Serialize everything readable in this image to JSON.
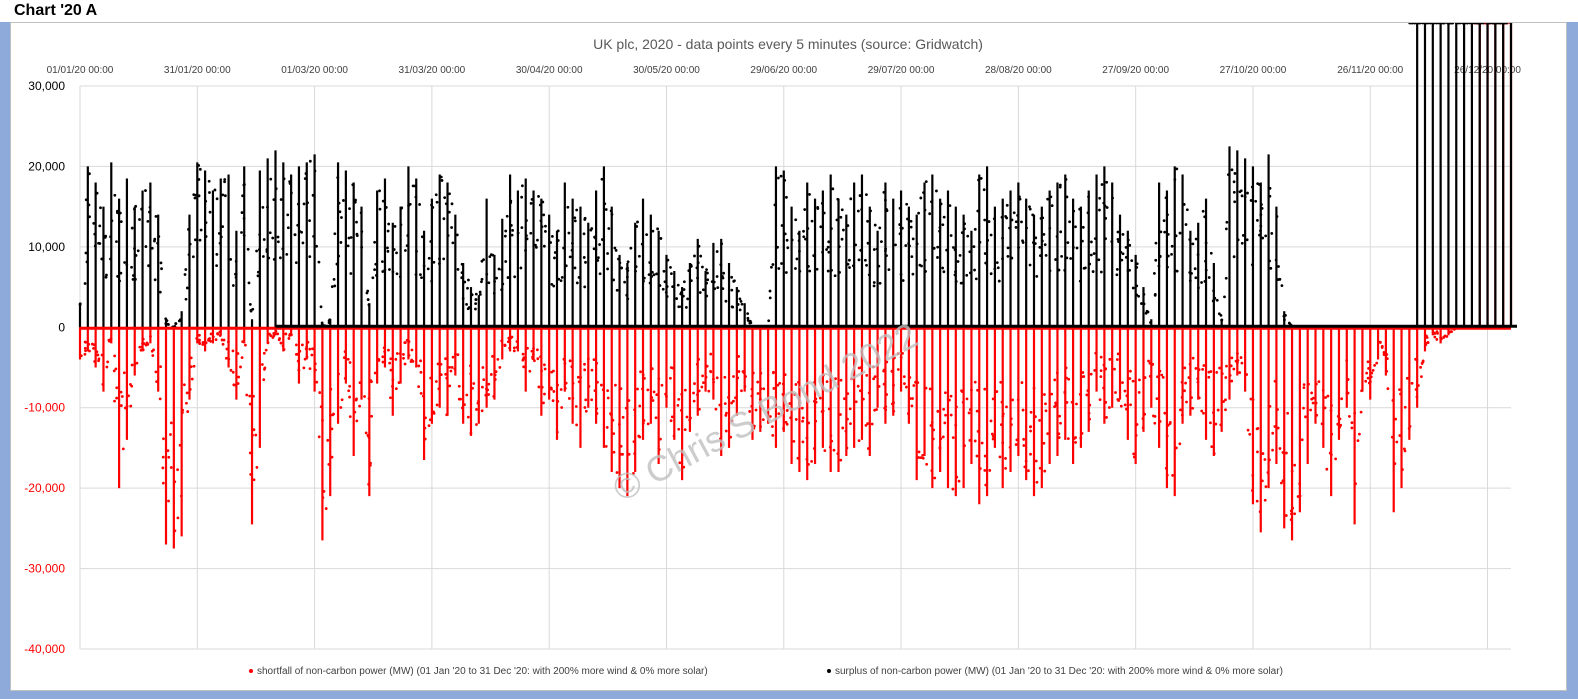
{
  "sheet": {
    "title": "Chart '20 A"
  },
  "watermark": "© Chris S Bond 2022",
  "chart_data": {
    "type": "scatter",
    "title": "UK plc, 2020 - data points every 5 minutes (source: Gridwatch)",
    "xlabel": "",
    "ylabel": "",
    "x_tick_labels": [
      "01/01/20 00:00",
      "31/01/20 00:00",
      "01/03/20 00:00",
      "31/03/20 00:00",
      "30/04/20 00:00",
      "30/05/20 00:00",
      "29/06/20 00:00",
      "29/07/20 00:00",
      "28/08/20 00:00",
      "27/09/20 00:00",
      "27/10/20 00:00",
      "26/11/20 00:00",
      "26/12/20 00:00"
    ],
    "x_tick_days": [
      0,
      30,
      60,
      90,
      120,
      150,
      180,
      210,
      240,
      270,
      300,
      330,
      360
    ],
    "xlim_days": [
      0,
      366
    ],
    "ylim": [
      -40000,
      30000
    ],
    "y_ticks": [
      30000,
      20000,
      10000,
      0,
      -10000,
      -20000,
      -30000,
      -40000
    ],
    "y_tick_labels": [
      "30,000",
      "20,000",
      "10,000",
      "0",
      "-10,000",
      "-20,000",
      "-30,000",
      "-40,000"
    ],
    "grid": true,
    "legend_position": "bottom",
    "series": [
      {
        "name": "shortfall of non-carbon power (MW) (01 Jan '20 to 31 Dec '20: with 200% more wind & 0% more solar)",
        "color": "#ff0000",
        "x_days": [
          0,
          2,
          4,
          6,
          8,
          10,
          12,
          14,
          16,
          18,
          20,
          22,
          24,
          26,
          28,
          30,
          32,
          34,
          36,
          38,
          40,
          42,
          44,
          46,
          48,
          50,
          52,
          54,
          56,
          58,
          60,
          62,
          64,
          66,
          68,
          70,
          72,
          74,
          76,
          78,
          80,
          82,
          84,
          86,
          88,
          90,
          92,
          94,
          96,
          98,
          100,
          102,
          104,
          106,
          108,
          110,
          112,
          114,
          116,
          118,
          120,
          122,
          124,
          126,
          128,
          130,
          132,
          134,
          136,
          138,
          140,
          142,
          144,
          146,
          148,
          150,
          152,
          154,
          156,
          158,
          160,
          162,
          164,
          166,
          168,
          170,
          172,
          174,
          176,
          178,
          180,
          182,
          184,
          186,
          188,
          190,
          192,
          194,
          196,
          198,
          200,
          202,
          204,
          206,
          208,
          210,
          212,
          214,
          216,
          218,
          220,
          222,
          224,
          226,
          228,
          230,
          232,
          234,
          236,
          238,
          240,
          242,
          244,
          246,
          248,
          250,
          252,
          254,
          256,
          258,
          260,
          262,
          264,
          266,
          268,
          270,
          272,
          274,
          276,
          278,
          280,
          282,
          284,
          286,
          288,
          290,
          292,
          294,
          296,
          298,
          300,
          302,
          304,
          306,
          308,
          310,
          312,
          314,
          316,
          318,
          320,
          322,
          324,
          326,
          328,
          330,
          332,
          334,
          336,
          338,
          340,
          342,
          344,
          346,
          348,
          350,
          352,
          354,
          356,
          358,
          360,
          362,
          364,
          366
        ],
        "min_mw": [
          -4000,
          -3000,
          -5000,
          -8000,
          -2000,
          -20000,
          -14000,
          -6000,
          -3000,
          -2000,
          -8000,
          -27000,
          -27500,
          -26000,
          -9000,
          -2000,
          -3000,
          -2000,
          -1000,
          -5000,
          -9000,
          -2000,
          -24500,
          -15000,
          -2000,
          -1000,
          -3000,
          -1000,
          -7000,
          -4000,
          -8000,
          -26500,
          -21000,
          -12000,
          -7000,
          -16000,
          -9000,
          -21000,
          -7000,
          -5000,
          -11000,
          -7000,
          -4000,
          -5000,
          -16500,
          -12000,
          -10000,
          -11000,
          -6000,
          -12000,
          -13500,
          -12000,
          -10000,
          -9000,
          -4000,
          -3000,
          -3000,
          -8000,
          -4000,
          -11000,
          -9000,
          -14000,
          -8000,
          -12000,
          -15000,
          -10000,
          -12000,
          -15000,
          -18000,
          -20000,
          -21000,
          -18000,
          -14000,
          -12000,
          -17000,
          -10000,
          -14000,
          -19000,
          -13000,
          -11000,
          -8000,
          -9000,
          -16000,
          -15000,
          -11000,
          -8000,
          -14000,
          -13000,
          -12000,
          -15000,
          -13000,
          -17000,
          -18000,
          -19000,
          -17000,
          -15000,
          -18000,
          -18000,
          -16000,
          -15000,
          -14000,
          -16000,
          -10000,
          -12000,
          -11000,
          -8000,
          -12000,
          -19000,
          -16000,
          -20000,
          -18000,
          -20000,
          -21000,
          -20000,
          -17000,
          -22000,
          -21000,
          -15000,
          -20000,
          -18000,
          -16000,
          -19000,
          -21000,
          -20000,
          -17000,
          -16000,
          -14000,
          -17000,
          -15000,
          -13000,
          -8000,
          -12000,
          -10000,
          -9000,
          -14000,
          -17000,
          -13000,
          -10000,
          -15000,
          -20000,
          -21000,
          -12000,
          -11000,
          -9000,
          -14000,
          -16000,
          -13000,
          -9000,
          -6000,
          -8000,
          -22000,
          -25500,
          -20000,
          -17000,
          -25000,
          -26500,
          -23000,
          -17000,
          -12000,
          -15000,
          -21000,
          -14000,
          -10000,
          -24500,
          -8000,
          -9000,
          -4000,
          -6000,
          -23000,
          -20000,
          -14000,
          -10000,
          -3000,
          -1000,
          -2000,
          -1000,
          0,
          0,
          0
        ]
      },
      {
        "name": "surplus of non-carbon power (MW) (01 Jan '20 to 31 Dec '20: with 200% more wind & 0% more solar)",
        "color": "#000000",
        "x_days": [
          0,
          2,
          4,
          6,
          8,
          10,
          12,
          14,
          16,
          18,
          20,
          22,
          24,
          26,
          28,
          30,
          32,
          34,
          36,
          38,
          40,
          42,
          44,
          46,
          48,
          50,
          52,
          54,
          56,
          58,
          60,
          62,
          64,
          66,
          68,
          70,
          72,
          74,
          76,
          78,
          80,
          82,
          84,
          86,
          88,
          90,
          92,
          94,
          96,
          98,
          100,
          102,
          104,
          106,
          108,
          110,
          112,
          114,
          116,
          118,
          120,
          122,
          124,
          126,
          128,
          130,
          132,
          134,
          136,
          138,
          140,
          142,
          144,
          146,
          148,
          150,
          152,
          154,
          156,
          158,
          160,
          162,
          164,
          166,
          168,
          170,
          172,
          174,
          176,
          178,
          180,
          182,
          184,
          186,
          188,
          190,
          192,
          194,
          196,
          198,
          200,
          202,
          204,
          206,
          208,
          210,
          212,
          214,
          216,
          218,
          220,
          222,
          224,
          226,
          228,
          230,
          232,
          234,
          236,
          238,
          240,
          242,
          244,
          246,
          248,
          250,
          252,
          254,
          256,
          258,
          260,
          262,
          264,
          266,
          268,
          270,
          272,
          274,
          276,
          278,
          280,
          282,
          284,
          286,
          288,
          290,
          292,
          294,
          296,
          298,
          300,
          302,
          304,
          306,
          308,
          310,
          312,
          314,
          316,
          318,
          320,
          322,
          324,
          326,
          328,
          330,
          332,
          334,
          336,
          338,
          340,
          342,
          344,
          346,
          348,
          350,
          352,
          354,
          356,
          358,
          360,
          362,
          364,
          366
        ],
        "max_mw": [
          3000,
          20000,
          18000,
          15000,
          20500,
          16000,
          18500,
          15000,
          17000,
          18000,
          14000,
          1000,
          0,
          2000,
          14000,
          20500,
          19500,
          17000,
          18500,
          19000,
          12000,
          20000,
          1000,
          19500,
          21000,
          22000,
          20500,
          19000,
          20000,
          20500,
          21500,
          0,
          1000,
          20500,
          19500,
          18000,
          15000,
          3000,
          17000,
          18500,
          13000,
          15000,
          20000,
          18500,
          12000,
          16000,
          19000,
          18000,
          14000,
          8000,
          5000,
          4000,
          16000,
          9000,
          13500,
          19000,
          17000,
          18500,
          17000,
          16000,
          14000,
          12000,
          18000,
          16000,
          15000,
          13000,
          17000,
          20000,
          15000,
          9000,
          8000,
          13000,
          16000,
          14000,
          12000,
          9000,
          7000,
          5000,
          8000,
          11000,
          7000,
          10500,
          11000,
          8000,
          5000,
          3000,
          0,
          0,
          0,
          20000,
          19500,
          15000,
          12000,
          18000,
          16000,
          17000,
          19000,
          16000,
          14000,
          18000,
          19000,
          15000,
          12000,
          18000,
          16000,
          17000,
          15000,
          14000,
          18000,
          19000,
          16000,
          17000,
          15000,
          14000,
          12000,
          19000,
          20000,
          15000,
          16000,
          17000,
          18000,
          16000,
          14000,
          15000,
          17000,
          18000,
          19000,
          16000,
          15000,
          17000,
          19000,
          20000,
          18000,
          14000,
          12000,
          9000,
          5000,
          1000,
          18000,
          17000,
          20000,
          19000,
          12000,
          13000,
          16000,
          8000,
          1000,
          22500,
          22000,
          21000,
          20000,
          18000,
          21500,
          15000,
          2000,
          0,
          0,
          0,
          0,
          0,
          0,
          0,
          0,
          0,
          0,
          0,
          0,
          0,
          0,
          0,
          0
        ]
      }
    ]
  }
}
